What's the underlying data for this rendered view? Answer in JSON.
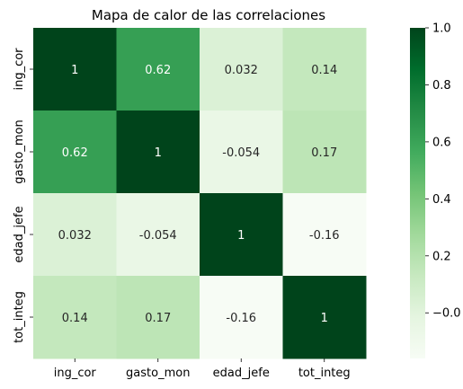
{
  "chart_data": {
    "type": "heatmap",
    "title": "Mapa de calor de las correlaciones",
    "xlabel": "",
    "ylabel": "",
    "x_categories": [
      "ing_cor",
      "gasto_mon",
      "edad_jefe",
      "tot_integ"
    ],
    "y_categories": [
      "ing_cor",
      "gasto_mon",
      "edad_jefe",
      "tot_integ"
    ],
    "values": [
      [
        1,
        0.62,
        0.032,
        0.14
      ],
      [
        0.62,
        1,
        -0.054,
        0.17
      ],
      [
        0.032,
        -0.054,
        1,
        -0.16
      ],
      [
        0.14,
        0.17,
        -0.16,
        1
      ]
    ],
    "cell_labels": [
      [
        "1",
        "0.62",
        "0.032",
        "0.14"
      ],
      [
        "0.62",
        "1",
        "-0.054",
        "0.17"
      ],
      [
        "0.032",
        "-0.054",
        "1",
        "-0.16"
      ],
      [
        "0.14",
        "0.17",
        "-0.16",
        "1"
      ]
    ],
    "colormap": "Greens",
    "vmin": -0.16,
    "vmax": 1.0,
    "colorbar_ticks": [
      -0.0,
      0.2,
      0.4,
      0.6,
      0.8,
      1.0
    ],
    "colorbar_tick_labels": [
      "−0.0",
      "0.2",
      "0.4",
      "0.6",
      "0.8",
      "1.0"
    ],
    "colorbar_stops": [
      "#f7fcf5",
      "#e5f5e0",
      "#c7e9c0",
      "#a1d99b",
      "#74c476",
      "#41ab5d",
      "#238b45",
      "#006d2c",
      "#00441b"
    ]
  }
}
